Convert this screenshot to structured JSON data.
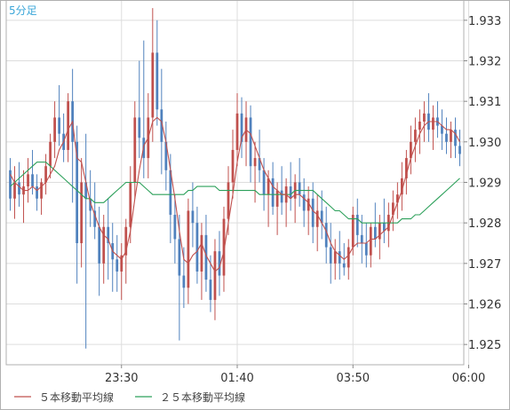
{
  "timeframe_label": "5分足",
  "chart_data": {
    "type": "candlestick",
    "title": "",
    "xlabel": "",
    "ylabel": "",
    "ylim": [
      1.9245,
      1.9335
    ],
    "yticks": [
      "1.933",
      "1.932",
      "1.931",
      "1.930",
      "1.929",
      "1.928",
      "1.927",
      "1.926",
      "1.925"
    ],
    "ytick_values": [
      1.933,
      1.932,
      1.931,
      1.93,
      1.929,
      1.928,
      1.927,
      1.926,
      1.925
    ],
    "xticks": [
      {
        "label": "23:30",
        "index": 25
      },
      {
        "label": "01:40",
        "index": 51
      },
      {
        "label": "03:50",
        "index": 77
      },
      {
        "label": "06:00",
        "index": 103
      }
    ],
    "grid": true,
    "legend_position": "bottom-left",
    "colors": {
      "up": "#c0504d",
      "down": "#4f81bd",
      "ma5": "#c0504d",
      "ma25": "#2ca05a",
      "grid": "#dddddd",
      "frame": "#b0b0b0"
    },
    "series": [
      {
        "name": "５本移動平均線",
        "kind": "sma",
        "period": 5
      },
      {
        "name": "２５本移動平均線",
        "kind": "sma",
        "period": 25
      }
    ],
    "candles": [
      [
        1.9293,
        1.9296,
        1.9283,
        1.9286
      ],
      [
        1.9286,
        1.9294,
        1.9281,
        1.929
      ],
      [
        1.929,
        1.9295,
        1.9284,
        1.9287
      ],
      [
        1.9287,
        1.9293,
        1.928,
        1.9289
      ],
      [
        1.9289,
        1.9296,
        1.9285,
        1.9292
      ],
      [
        1.9292,
        1.9298,
        1.9287,
        1.9289
      ],
      [
        1.9289,
        1.9292,
        1.9283,
        1.9286
      ],
      [
        1.9286,
        1.9291,
        1.9282,
        1.929
      ],
      [
        1.929,
        1.9297,
        1.9287,
        1.9294
      ],
      [
        1.9294,
        1.9302,
        1.9291,
        1.93
      ],
      [
        1.93,
        1.931,
        1.9296,
        1.9306
      ],
      [
        1.9306,
        1.9314,
        1.9299,
        1.9302
      ],
      [
        1.9302,
        1.9307,
        1.9295,
        1.9298
      ],
      [
        1.9298,
        1.9312,
        1.9295,
        1.931
      ],
      [
        1.931,
        1.9318,
        1.9285,
        1.93
      ],
      [
        1.93,
        1.9304,
        1.9265,
        1.9275
      ],
      [
        1.9275,
        1.9296,
        1.9269,
        1.929
      ],
      [
        1.929,
        1.9302,
        1.9249,
        1.9286
      ],
      [
        1.9286,
        1.9293,
        1.9279,
        1.9283
      ],
      [
        1.9283,
        1.929,
        1.9276,
        1.9279
      ],
      [
        1.9279,
        1.9284,
        1.9262,
        1.927
      ],
      [
        1.927,
        1.9282,
        1.9265,
        1.9279
      ],
      [
        1.9279,
        1.9286,
        1.9266,
        1.9275
      ],
      [
        1.9275,
        1.928,
        1.9263,
        1.9271
      ],
      [
        1.9271,
        1.9277,
        1.9263,
        1.9268
      ],
      [
        1.9268,
        1.9275,
        1.9261,
        1.9272
      ],
      [
        1.9272,
        1.9281,
        1.9265,
        1.9279
      ],
      [
        1.9279,
        1.9294,
        1.9275,
        1.929
      ],
      [
        1.929,
        1.931,
        1.9286,
        1.9306
      ],
      [
        1.9306,
        1.932,
        1.9296,
        1.9301
      ],
      [
        1.9301,
        1.9325,
        1.9291,
        1.9296
      ],
      [
        1.9296,
        1.9312,
        1.9291,
        1.9306
      ],
      [
        1.9306,
        1.9333,
        1.93,
        1.9322
      ],
      [
        1.9322,
        1.933,
        1.9304,
        1.9308
      ],
      [
        1.9308,
        1.9318,
        1.9292,
        1.93
      ],
      [
        1.93,
        1.9305,
        1.9288,
        1.9293
      ],
      [
        1.9293,
        1.9297,
        1.9275,
        1.9282
      ],
      [
        1.9282,
        1.9287,
        1.927,
        1.9276
      ],
      [
        1.9276,
        1.9282,
        1.9251,
        1.9267
      ],
      [
        1.9267,
        1.9274,
        1.9259,
        1.9264
      ],
      [
        1.9264,
        1.9286,
        1.926,
        1.9283
      ],
      [
        1.9283,
        1.929,
        1.9274,
        1.928
      ],
      [
        1.928,
        1.9284,
        1.9265,
        1.9268
      ],
      [
        1.9268,
        1.928,
        1.9261,
        1.9277
      ],
      [
        1.9277,
        1.9282,
        1.9263,
        1.9266
      ],
      [
        1.9266,
        1.9272,
        1.9258,
        1.9261
      ],
      [
        1.9261,
        1.9276,
        1.9256,
        1.9273
      ],
      [
        1.9273,
        1.9278,
        1.9262,
        1.9267
      ],
      [
        1.9267,
        1.9284,
        1.9263,
        1.9281
      ],
      [
        1.9281,
        1.9294,
        1.9277,
        1.929
      ],
      [
        1.929,
        1.9303,
        1.9286,
        1.9298
      ],
      [
        1.9298,
        1.9312,
        1.9294,
        1.9307
      ],
      [
        1.9307,
        1.9311,
        1.9296,
        1.93
      ],
      [
        1.93,
        1.931,
        1.9294,
        1.9306
      ],
      [
        1.9306,
        1.9309,
        1.929,
        1.9294
      ],
      [
        1.9294,
        1.93,
        1.9285,
        1.9296
      ],
      [
        1.9296,
        1.9303,
        1.929,
        1.9293
      ],
      [
        1.9293,
        1.9296,
        1.9283,
        1.9287
      ],
      [
        1.9287,
        1.9293,
        1.9279,
        1.9291
      ],
      [
        1.9291,
        1.9295,
        1.9282,
        1.9284
      ],
      [
        1.9284,
        1.929,
        1.9277,
        1.9288
      ],
      [
        1.9288,
        1.9294,
        1.9282,
        1.9285
      ],
      [
        1.9285,
        1.9291,
        1.9279,
        1.9289
      ],
      [
        1.9289,
        1.9295,
        1.9283,
        1.9286
      ],
      [
        1.9286,
        1.9292,
        1.928,
        1.929
      ],
      [
        1.929,
        1.9296,
        1.9284,
        1.9287
      ],
      [
        1.9287,
        1.9291,
        1.9279,
        1.9283
      ],
      [
        1.9283,
        1.9289,
        1.9277,
        1.9286
      ],
      [
        1.9286,
        1.929,
        1.9275,
        1.9279
      ],
      [
        1.9279,
        1.9287,
        1.9273,
        1.9283
      ],
      [
        1.9283,
        1.9288,
        1.9276,
        1.928
      ],
      [
        1.928,
        1.9284,
        1.927,
        1.9274
      ],
      [
        1.9274,
        1.928,
        1.9265,
        1.927
      ],
      [
        1.927,
        1.9276,
        1.9266,
        1.9273
      ],
      [
        1.9273,
        1.9278,
        1.9266,
        1.927
      ],
      [
        1.927,
        1.9275,
        1.9267,
        1.9269
      ],
      [
        1.9269,
        1.9276,
        1.9266,
        1.9274
      ],
      [
        1.9274,
        1.9284,
        1.9272,
        1.9282
      ],
      [
        1.9282,
        1.9286,
        1.9274,
        1.9277
      ],
      [
        1.9277,
        1.9282,
        1.927,
        1.9275
      ],
      [
        1.9275,
        1.928,
        1.9269,
        1.9272
      ],
      [
        1.9272,
        1.928,
        1.9269,
        1.9279
      ],
      [
        1.9279,
        1.9285,
        1.9274,
        1.9276
      ],
      [
        1.9276,
        1.9282,
        1.9271,
        1.928
      ],
      [
        1.928,
        1.9286,
        1.9275,
        1.9278
      ],
      [
        1.9278,
        1.9285,
        1.9274,
        1.9282
      ],
      [
        1.9282,
        1.9288,
        1.9278,
        1.9285
      ],
      [
        1.9285,
        1.929,
        1.9281,
        1.9287
      ],
      [
        1.9287,
        1.9295,
        1.9283,
        1.9291
      ],
      [
        1.9291,
        1.9298,
        1.9287,
        1.9296
      ],
      [
        1.9296,
        1.9304,
        1.9292,
        1.93
      ],
      [
        1.93,
        1.9306,
        1.9295,
        1.9303
      ],
      [
        1.9303,
        1.9308,
        1.9297,
        1.9305
      ],
      [
        1.9305,
        1.931,
        1.93,
        1.9307
      ],
      [
        1.9307,
        1.9312,
        1.93,
        1.9303
      ],
      [
        1.9303,
        1.9309,
        1.9298,
        1.9306
      ],
      [
        1.9306,
        1.931,
        1.9301,
        1.9304
      ],
      [
        1.9304,
        1.9308,
        1.9298,
        1.9302
      ],
      [
        1.9302,
        1.9306,
        1.9297,
        1.93
      ],
      [
        1.93,
        1.9305,
        1.9296,
        1.9303
      ],
      [
        1.9303,
        1.9306,
        1.9296,
        1.9299
      ],
      [
        1.9299,
        1.9303,
        1.9294,
        1.9297
      ]
    ],
    "ma5": [
      1.9292,
      1.929,
      1.9289,
      1.9288,
      1.9288,
      1.9289,
      1.9288,
      1.9289,
      1.929,
      1.9292,
      1.9294,
      1.9298,
      1.93,
      1.9303,
      1.9305,
      1.9296,
      1.9295,
      1.929,
      1.9285,
      1.9282,
      1.9279,
      1.9277,
      1.9276,
      1.9273,
      1.9272,
      1.9271,
      1.9273,
      1.9278,
      1.9286,
      1.9293,
      1.9299,
      1.9301,
      1.9305,
      1.9306,
      1.9305,
      1.93,
      1.9293,
      1.9286,
      1.9278,
      1.9271,
      1.927,
      1.9272,
      1.9273,
      1.9275,
      1.9272,
      1.927,
      1.9268,
      1.9269,
      1.9273,
      1.928,
      1.9287,
      1.9295,
      1.9301,
      1.9303,
      1.9302,
      1.9299,
      1.9296,
      1.9293,
      1.9291,
      1.9289,
      1.9288,
      1.9287,
      1.9287,
      1.9286,
      1.9287,
      1.9287,
      1.9286,
      1.9285,
      1.9283,
      1.9282,
      1.928,
      1.9278,
      1.9275,
      1.9273,
      1.9272,
      1.9271,
      1.9272,
      1.9274,
      1.9275,
      1.9275,
      1.9275,
      1.9276,
      1.9276,
      1.9277,
      1.9278,
      1.9279,
      1.9282,
      1.9285,
      1.9288,
      1.9292,
      1.9296,
      1.9299,
      1.9302,
      1.9304,
      1.9305,
      1.9305,
      1.9305,
      1.9304,
      1.9303,
      1.9303,
      1.9302,
      1.93
    ],
    "ma25": [
      1.9289,
      1.929,
      1.9291,
      1.9292,
      1.9293,
      1.9294,
      1.9295,
      1.9295,
      1.9295,
      1.9294,
      1.9293,
      1.9292,
      1.9291,
      1.929,
      1.9289,
      1.9288,
      1.9287,
      1.9286,
      1.9286,
      1.9285,
      1.9285,
      1.9285,
      1.9286,
      1.9287,
      1.9288,
      1.9289,
      1.929,
      1.929,
      1.929,
      1.929,
      1.9289,
      1.9288,
      1.9287,
      1.9287,
      1.9287,
      1.9287,
      1.9287,
      1.9287,
      1.9287,
      1.9287,
      1.9288,
      1.9288,
      1.9289,
      1.9289,
      1.9289,
      1.9289,
      1.9289,
      1.9288,
      1.9288,
      1.9288,
      1.9288,
      1.9288,
      1.9288,
      1.9288,
      1.9288,
      1.9288,
      1.9287,
      1.9287,
      1.9287,
      1.9287,
      1.9287,
      1.9287,
      1.9287,
      1.9287,
      1.9288,
      1.9288,
      1.9288,
      1.9288,
      1.9288,
      1.9287,
      1.9286,
      1.9285,
      1.9284,
      1.9283,
      1.9283,
      1.9282,
      1.9281,
      1.9281,
      1.9281,
      1.928,
      1.928,
      1.928,
      1.928,
      1.928,
      1.928,
      1.928,
      1.928,
      1.928,
      1.9281,
      1.9281,
      1.9281,
      1.9282,
      1.9282,
      1.9283,
      1.9284,
      1.9285,
      1.9286,
      1.9287,
      1.9288,
      1.9289,
      1.929,
      1.9291
    ]
  }
}
